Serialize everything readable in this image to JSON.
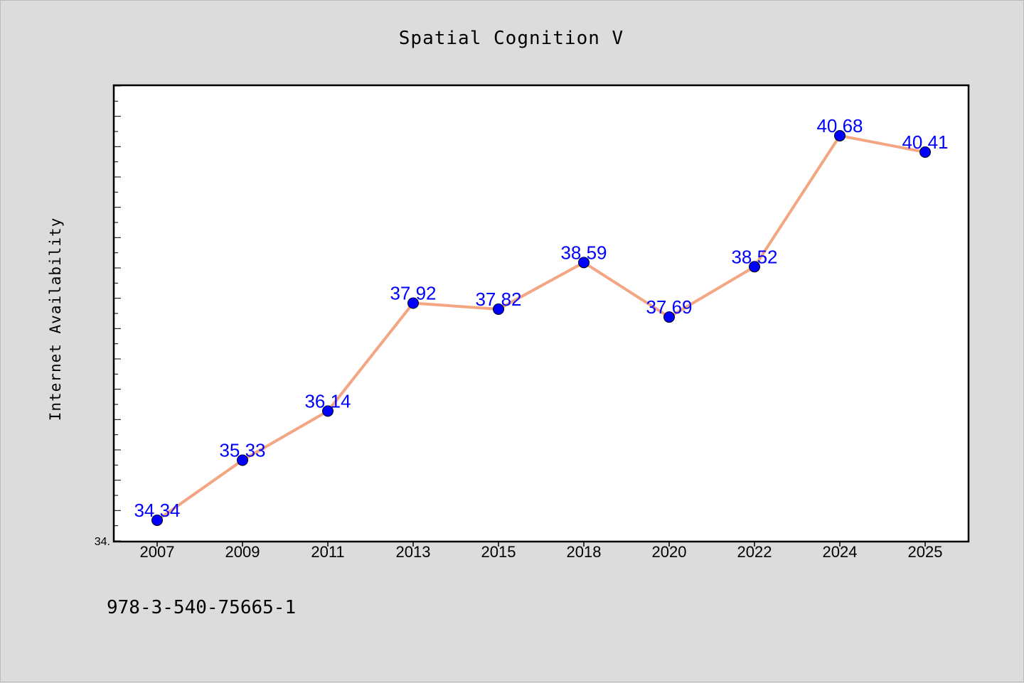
{
  "chart_data": {
    "type": "line",
    "title": "Spatial Cognition V",
    "xlabel": "",
    "ylabel": "Internet Availability",
    "categories": [
      "2007",
      "2009",
      "2011",
      "2013",
      "2015",
      "2018",
      "2020",
      "2022",
      "2024",
      "2025"
    ],
    "series": [
      {
        "values": [
          34.34,
          35.33,
          36.14,
          37.92,
          37.82,
          38.59,
          37.69,
          38.52,
          40.68,
          40.41
        ]
      }
    ],
    "data_labels": [
      "34.34",
      "35.33",
      "36.14",
      "37.92",
      "37.82",
      "38.59",
      "37.69",
      "38.52",
      "40.68",
      "40.41"
    ],
    "y_tick_labels": [
      "34."
    ],
    "ylim": [
      34.0,
      41.5
    ],
    "grid": false,
    "legend": "none",
    "colors": {
      "line": "#f4a582",
      "marker": "#0000ff",
      "data_label": "#0000ff",
      "background": "#dcdcdc",
      "plot_area": "#ffffff"
    }
  },
  "footer_text": "978-3-540-75665-1"
}
